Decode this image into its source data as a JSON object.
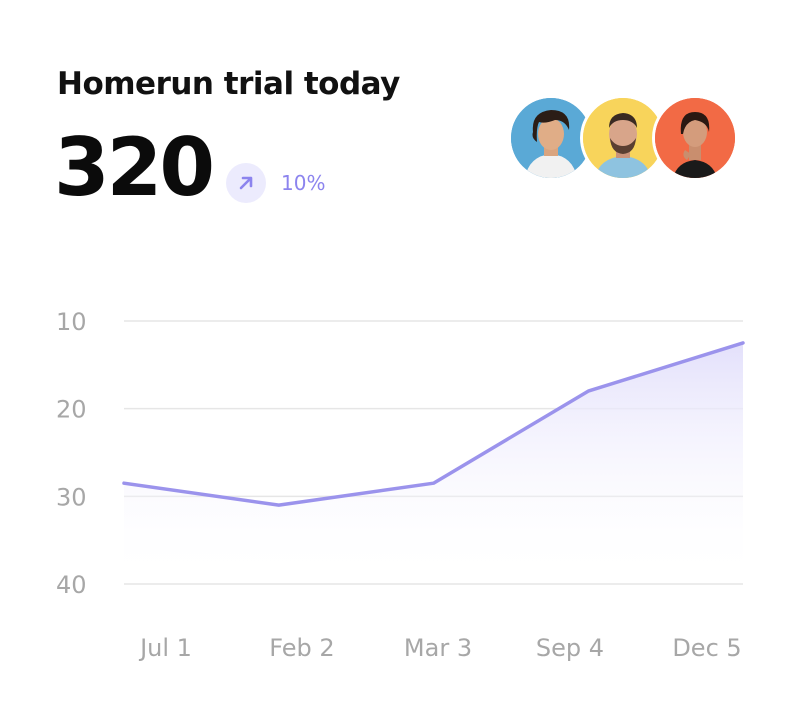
{
  "header": {
    "title": "Homerun trial today",
    "value": "320",
    "change": "10%"
  },
  "icons": {
    "trend": "arrow-up-right-icon"
  },
  "colors": {
    "accent": "#9b93ec",
    "accent_bg": "#ecebfd",
    "fill_top": "#e3e0fb",
    "grid": "#e6e6e6",
    "tick": "#a7a7a7",
    "avatar_1_bg": "#5aa9d6",
    "avatar_2_bg": "#f8d45b",
    "avatar_3_bg": "#f26a45"
  },
  "chart_data": {
    "type": "area",
    "title": "",
    "xlabel": "",
    "ylabel": "",
    "x": [
      "Jul 1",
      "Feb 2",
      "Mar 3",
      "Sep 4",
      "Dec 5"
    ],
    "series": [
      {
        "values": [
          28.5,
          31,
          28.5,
          18,
          12.5
        ]
      }
    ],
    "yticks": [
      10,
      20,
      30,
      40
    ],
    "ylim": [
      10,
      40
    ],
    "y_inverted": true,
    "grid": true
  }
}
